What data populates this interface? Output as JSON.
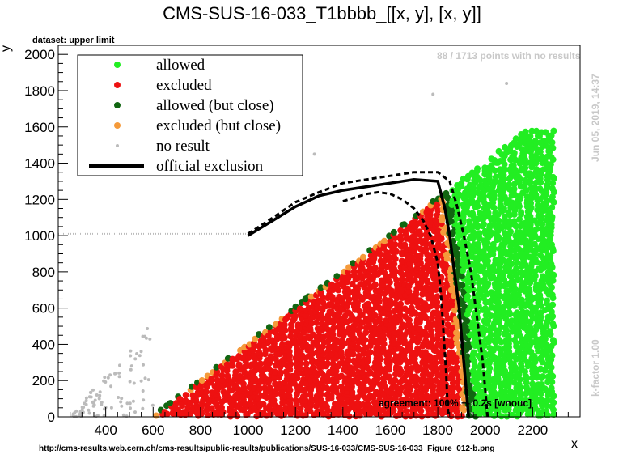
{
  "chart_data": {
    "type": "scatter",
    "title": "CMS-SUS-16-033_T1bbbb_[[x, y], [x, y]]",
    "subtitle": "dataset: upper limit",
    "xlabel": "x",
    "ylabel": "y",
    "xlim": [
      200,
      2400
    ],
    "ylim": [
      0,
      2050
    ],
    "xticks": [
      400,
      600,
      800,
      1000,
      1200,
      1400,
      1600,
      1800,
      2000,
      2200
    ],
    "yticks": [
      0,
      200,
      400,
      600,
      800,
      1000,
      1200,
      1400,
      1600,
      1800,
      2000
    ],
    "note_points": "88 / 1713 points with no results",
    "note_date": "Jun 05, 2019, 14:37",
    "note_kfactor": "k-factor 1.00",
    "agreement": "agreement: 100% +- 0.2s [wnouc]",
    "url": "http://cms-results.web.cern.ch/cms-results/public-results/publications/SUS-16-033/CMS-SUS-16-033_Figure_012-b.png",
    "legend": {
      "placement": "top-left",
      "entries": [
        {
          "label": "allowed",
          "color": "#22ee22",
          "kind": "dot"
        },
        {
          "label": "excluded",
          "color": "#ee1111",
          "kind": "dot"
        },
        {
          "label": "allowed (but close)",
          "color": "#116611",
          "kind": "dot"
        },
        {
          "label": "excluded (but close)",
          "color": "#f59a3a",
          "kind": "dot"
        },
        {
          "label": "no result",
          "color": "#bbbbbb",
          "kind": "small-dot"
        },
        {
          "label": "official exclusion",
          "color": "#000000",
          "kind": "line"
        }
      ]
    },
    "series": [
      {
        "name": "official exclusion",
        "style": "solid",
        "x": [
          1000,
          1100,
          1200,
          1300,
          1400,
          1500,
          1600,
          1700,
          1800,
          1830,
          1850,
          1870,
          1890,
          1910,
          1930
        ],
        "y": [
          1000,
          1080,
          1160,
          1220,
          1250,
          1270,
          1290,
          1310,
          1300,
          1150,
          1000,
          800,
          600,
          300,
          0
        ]
      },
      {
        "name": "upper band",
        "style": "dashed",
        "x": [
          1000,
          1100,
          1200,
          1300,
          1400,
          1500,
          1600,
          1700,
          1800,
          1850,
          1880,
          1910,
          1940,
          1960,
          1990,
          2010,
          2010
        ],
        "y": [
          1010,
          1095,
          1185,
          1240,
          1290,
          1310,
          1330,
          1350,
          1350,
          1300,
          1170,
          1000,
          800,
          600,
          300,
          0,
          0
        ]
      },
      {
        "name": "lower band",
        "style": "dashed",
        "x": [
          1400,
          1450,
          1500,
          1550,
          1600,
          1650,
          1700,
          1740,
          1770,
          1800,
          1815,
          1825,
          1835,
          1840,
          1845
        ],
        "y": [
          1190,
          1210,
          1230,
          1240,
          1230,
          1200,
          1150,
          1080,
          1000,
          850,
          650,
          450,
          250,
          100,
          0
        ]
      }
    ],
    "regions": {
      "excluded_note": "red points fill x 600–1850, y 0 up to diagonal y ≈ x − 600 (capped ≈1250)",
      "allowed_note": "green points fill x 1850–2300 below y ≈ 1600 and the band above the diagonal",
      "no_result_note": "grey points at x 250–600, y 0–600 and scattered outliers"
    }
  }
}
